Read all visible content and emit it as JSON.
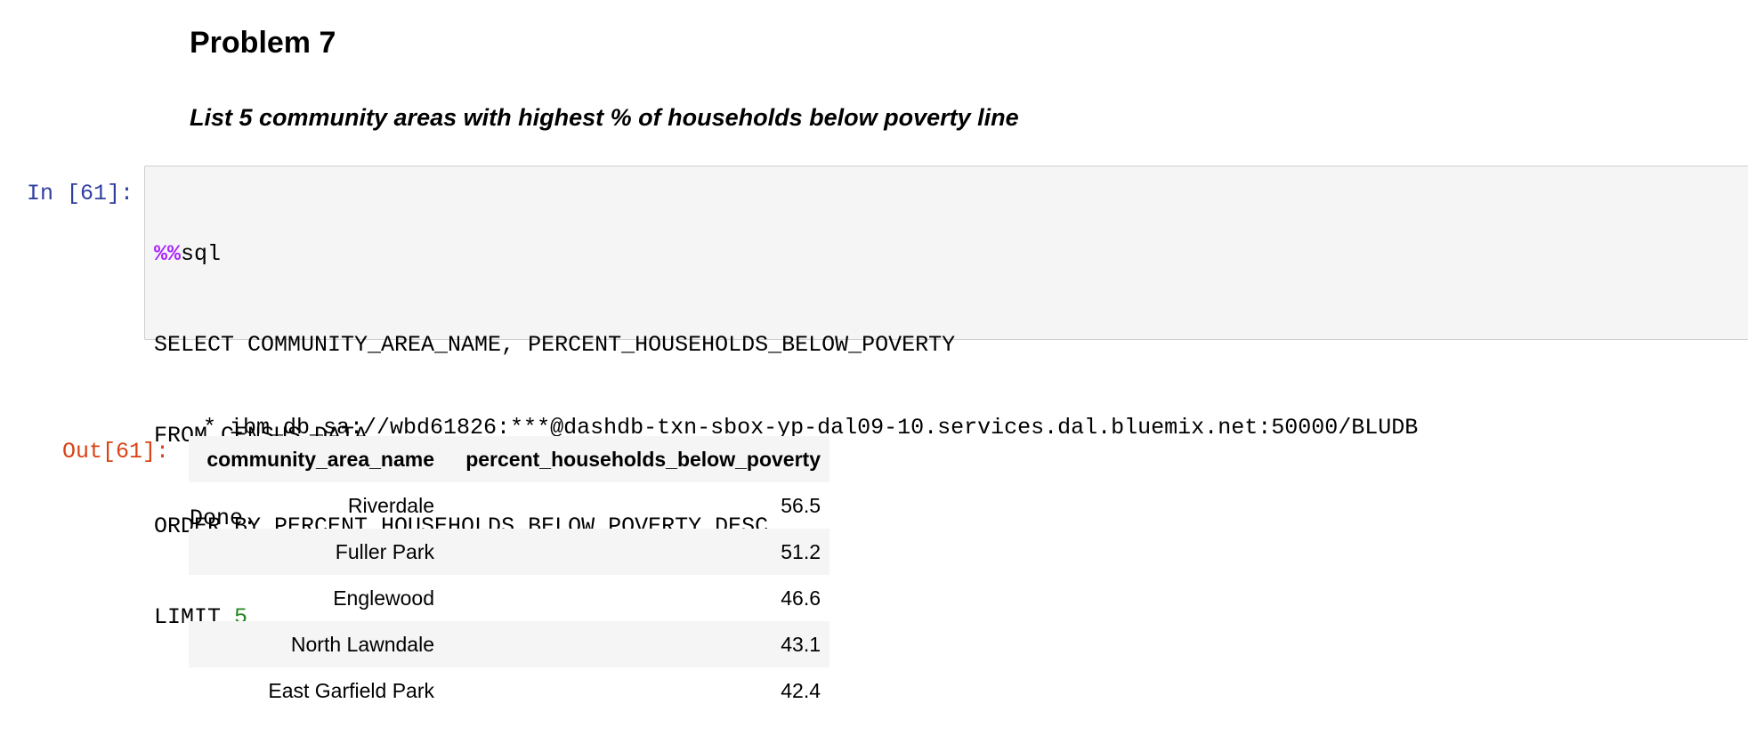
{
  "markdown": {
    "heading": "Problem 7",
    "subheading": "List 5 community areas with highest % of households below poverty line"
  },
  "input_cell": {
    "prompt": "In [61]:",
    "magic_prefix": "%%",
    "magic_name": "sql",
    "lines": [
      "SELECT COMMUNITY_AREA_NAME, PERCENT_HOUSEHOLDS_BELOW_POVERTY",
      "FROM CENSUS_DATA",
      "ORDER BY PERCENT_HOUSEHOLDS_BELOW_POVERTY DESC"
    ],
    "limit_keyword": "LIMIT ",
    "limit_value": "5"
  },
  "stdout": {
    "connection": " * ibm_db_sa://wbd61826:***@dashdb-txn-sbox-yp-dal09-10.services.dal.bluemix.net:50000/BLUDB",
    "status": "Done."
  },
  "output_cell": {
    "prompt": "Out[61]:",
    "columns": [
      "community_area_name",
      "percent_households_below_poverty"
    ],
    "rows": [
      [
        "Riverdale",
        "56.5"
      ],
      [
        "Fuller Park",
        "51.2"
      ],
      [
        "Englewood",
        "46.6"
      ],
      [
        "North Lawndale",
        "43.1"
      ],
      [
        "East Garfield Park",
        "42.4"
      ]
    ]
  },
  "colors": {
    "in_prompt": "#303f9f",
    "out_prompt": "#d84315",
    "magic": "#aa22ff",
    "number": "#228822",
    "cell_background": "#f5f5f5"
  }
}
